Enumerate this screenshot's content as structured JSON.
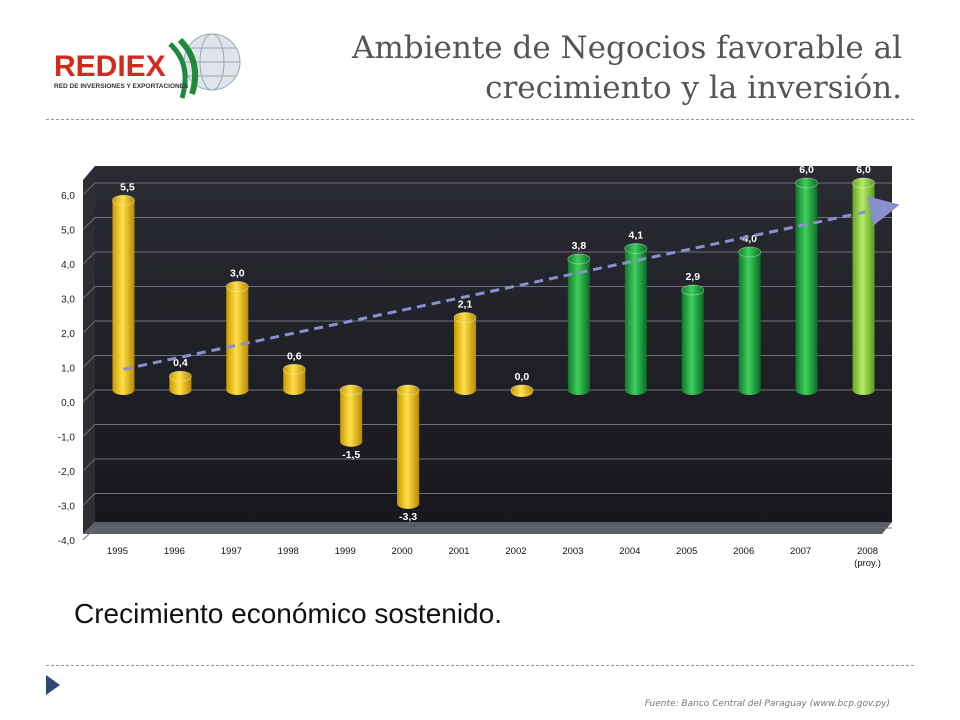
{
  "logo": {
    "name": "REDIEX",
    "tagline": "RED DE INVERSIONES Y EXPORTACIONES"
  },
  "header": {
    "title_line1": "Ambiente de Negocios favorable al",
    "title_line2": "crecimiento y la inversión."
  },
  "subtitle": "Crecimiento económico sostenido.",
  "source": "Fuente: Banco Central del Paraguay (www.bcp.gov.py)",
  "colors": {
    "yellow": "#f5c400",
    "green": "#1e9e3c",
    "light_green": "#8fd13c",
    "trend": "#8a8fd0",
    "background": "#1f2026"
  },
  "chart_data": {
    "type": "bar",
    "categories": [
      "1995",
      "1996",
      "1997",
      "1998",
      "1999",
      "2000",
      "2001",
      "2002",
      "2003",
      "2004",
      "2005",
      "2006",
      "2007",
      "2008 (proy.)"
    ],
    "values": [
      5.5,
      0.4,
      3.0,
      0.6,
      -1.5,
      -3.3,
      2.1,
      0.0,
      3.8,
      4.1,
      2.9,
      4.0,
      6.0,
      6.0
    ],
    "value_labels": [
      "5,5",
      "0,4",
      "3,0",
      "0,6",
      "-1,5",
      "-3,3",
      "2,1",
      "0,0",
      "3,8",
      "4,1",
      "2,9",
      "4,0",
      "6,0",
      "6,0"
    ],
    "bar_colors": [
      "yellow",
      "yellow",
      "yellow",
      "yellow",
      "yellow",
      "yellow",
      "yellow",
      "yellow",
      "green",
      "green",
      "green",
      "green",
      "green",
      "light_green"
    ],
    "y_ticks": [
      "6,0",
      "5,0",
      "4,0",
      "3,0",
      "2,0",
      "1,0",
      "0,0",
      "-1,0",
      "-2,0",
      "-3,0",
      "-4,0"
    ],
    "y_tick_values": [
      6,
      5,
      4,
      3,
      2,
      1,
      0,
      -1,
      -2,
      -3,
      -4
    ],
    "ylim": [
      -4,
      6
    ],
    "grid": true,
    "trend_line": {
      "from_value": 0.6,
      "to_value": 5.3,
      "style": "dashed-arrow"
    }
  }
}
